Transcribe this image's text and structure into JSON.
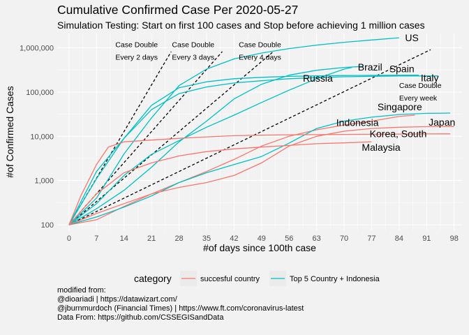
{
  "title": "Cumulative Confirmed Case Per 2020-05-27",
  "subtitle": "Simulation Testing: Start on first 100 cases and Stop before achieving 1 million cases",
  "caption": [
    "modified from:",
    "@dioariadi | https://datawizart.com/",
    "@jburnmurdoch (Financial Times) | https://www.ft.com/coronavirus-latest",
    "Data From: https://github.com/CSSEGISandData"
  ],
  "colors": {
    "background": "#f2f2f2",
    "grid": "#ffffff",
    "succesful": "#f8766d",
    "top5": "#00bfc4",
    "reference": "#000000"
  },
  "chart_data": {
    "type": "line",
    "xlabel": "#of days since 100th case",
    "ylabel": "#of Confirmed Cases",
    "x_ticks": [
      0,
      7,
      14,
      21,
      28,
      35,
      42,
      49,
      56,
      63,
      70,
      77,
      84,
      91,
      98
    ],
    "y_ticks": [
      {
        "value": 100,
        "label": "100"
      },
      {
        "value": 1000,
        "label": "1,000"
      },
      {
        "value": 10000,
        "label": "10,000"
      },
      {
        "value": 100000,
        "label": "100,000"
      },
      {
        "value": 1000000,
        "label": "1,000,000"
      }
    ],
    "xlim": [
      -3,
      100
    ],
    "ylim": [
      75,
      2100000
    ],
    "y_scale": "log",
    "grid": true,
    "legend": {
      "title": "category",
      "position": "bottom",
      "entries": [
        {
          "label": "succesful country",
          "series_category": "succesful"
        },
        {
          "label": "Top 5 Country + Indonesia",
          "series_category": "top5"
        }
      ]
    },
    "reference_lines": [
      {
        "label": "Case Double\nEvery 2 days",
        "doubling_days": 2,
        "x_end": 26,
        "label_x": 11.8,
        "label_y": 1030000
      },
      {
        "label": "Case Double\nEvery 3 days",
        "doubling_days": 3,
        "x_end": 39,
        "label_x": 26.2,
        "label_y": 1030000
      },
      {
        "label": "Case Double\nEvery 4 days",
        "doubling_days": 4,
        "x_end": 52,
        "label_x": 43.2,
        "label_y": 1030000
      },
      {
        "label": "Case Double\nEvery week",
        "doubling_days": 7,
        "x_end": 92,
        "label_x": 84,
        "label_y": 124000
      }
    ],
    "series": [
      {
        "name": "US",
        "category": "top5",
        "points": [
          [
            0,
            100
          ],
          [
            7,
            400
          ],
          [
            14,
            4000
          ],
          [
            21,
            26000
          ],
          [
            28,
            140000
          ],
          [
            35,
            330000
          ],
          [
            42,
            560000
          ],
          [
            49,
            760000
          ],
          [
            56,
            960000
          ],
          [
            63,
            1150000
          ],
          [
            70,
            1330000
          ],
          [
            77,
            1500000
          ],
          [
            84,
            1680000
          ]
        ],
        "label_at": [
          85.5,
          1680000
        ]
      },
      {
        "name": "Brazil",
        "category": "top5",
        "points": [
          [
            0,
            100
          ],
          [
            7,
            300
          ],
          [
            14,
            1300
          ],
          [
            21,
            3900
          ],
          [
            28,
            8000
          ],
          [
            35,
            16000
          ],
          [
            42,
            30000
          ],
          [
            49,
            58000
          ],
          [
            56,
            110000
          ],
          [
            63,
            200000
          ],
          [
            70,
            330000
          ],
          [
            72,
            360000
          ]
        ],
        "label_at": [
          73.5,
          370000
        ]
      },
      {
        "name": "Russia",
        "category": "top5",
        "points": [
          [
            0,
            100
          ],
          [
            7,
            230
          ],
          [
            14,
            600
          ],
          [
            21,
            2000
          ],
          [
            28,
            7500
          ],
          [
            35,
            22000
          ],
          [
            42,
            70000
          ],
          [
            49,
            150000
          ],
          [
            56,
            240000
          ],
          [
            63,
            310000
          ],
          [
            70,
            360000
          ],
          [
            75,
            380000
          ]
        ],
        "label_at": [
          59.5,
          205000
        ]
      },
      {
        "name": "Spain",
        "category": "top5",
        "points": [
          [
            0,
            100
          ],
          [
            7,
            1100
          ],
          [
            14,
            9000
          ],
          [
            21,
            50000
          ],
          [
            28,
            125000
          ],
          [
            35,
            170000
          ],
          [
            42,
            200000
          ],
          [
            49,
            215000
          ],
          [
            56,
            226000
          ],
          [
            63,
            232000
          ],
          [
            70,
            236000
          ],
          [
            77,
            238000
          ],
          [
            84,
            239000
          ],
          [
            89,
            240000
          ]
        ],
        "label_at": [
          81.5,
          335000
        ]
      },
      {
        "name": "Italy",
        "category": "top5",
        "points": [
          [
            0,
            100
          ],
          [
            7,
            1600
          ],
          [
            14,
            9000
          ],
          [
            21,
            40000
          ],
          [
            28,
            92000
          ],
          [
            35,
            130000
          ],
          [
            42,
            160000
          ],
          [
            49,
            180000
          ],
          [
            56,
            200000
          ],
          [
            63,
            212000
          ],
          [
            70,
            221000
          ],
          [
            77,
            227000
          ],
          [
            84,
            230000
          ],
          [
            94,
            231000
          ]
        ],
        "label_at": [
          89.5,
          211000
        ]
      },
      {
        "name": "Indonesia",
        "category": "succesful",
        "points": [
          [
            0,
            100
          ],
          [
            7,
            130
          ],
          [
            14,
            260
          ],
          [
            21,
            500
          ],
          [
            28,
            900
          ],
          [
            35,
            1600
          ],
          [
            42,
            3000
          ],
          [
            49,
            6000
          ],
          [
            56,
            10000
          ],
          [
            63,
            14000
          ],
          [
            70,
            18000
          ],
          [
            77,
            22000
          ],
          [
            84,
            28000
          ],
          [
            88,
            30000
          ]
        ],
        "label_at": [
          68,
          20500
        ]
      },
      {
        "name": "Singapore",
        "category": "top5",
        "points": [
          [
            0,
            100
          ],
          [
            7,
            150
          ],
          [
            14,
            250
          ],
          [
            21,
            450
          ],
          [
            28,
            900
          ],
          [
            35,
            1500
          ],
          [
            42,
            2300
          ],
          [
            49,
            3500
          ],
          [
            56,
            7000
          ],
          [
            63,
            15000
          ],
          [
            70,
            22000
          ],
          [
            77,
            27000
          ],
          [
            84,
            31000
          ],
          [
            91,
            33000
          ],
          [
            97,
            33500
          ]
        ],
        "label_at": [
          78.5,
          46000
        ]
      },
      {
        "name": "Japan",
        "category": "succesful",
        "points": [
          [
            0,
            100
          ],
          [
            7,
            180
          ],
          [
            14,
            300
          ],
          [
            21,
            500
          ],
          [
            28,
            700
          ],
          [
            35,
            900
          ],
          [
            42,
            1300
          ],
          [
            49,
            2500
          ],
          [
            56,
            6000
          ],
          [
            63,
            10000
          ],
          [
            70,
            13000
          ],
          [
            77,
            15000
          ],
          [
            84,
            16000
          ],
          [
            91,
            16500
          ],
          [
            98,
            16600
          ]
        ],
        "label_at": [
          91.5,
          21000
        ]
      },
      {
        "name": "Korea, South",
        "category": "succesful",
        "points": [
          [
            0,
            100
          ],
          [
            3,
            450
          ],
          [
            7,
            2300
          ],
          [
            10,
            5700
          ],
          [
            14,
            7500
          ],
          [
            21,
            8200
          ],
          [
            28,
            9000
          ],
          [
            35,
            9700
          ],
          [
            42,
            10300
          ],
          [
            49,
            10600
          ],
          [
            56,
            10800
          ],
          [
            63,
            10900
          ],
          [
            70,
            11000
          ],
          [
            77,
            11100
          ],
          [
            84,
            11200
          ],
          [
            91,
            11300
          ],
          [
            97,
            11350
          ]
        ],
        "label_at": [
          76.5,
          11500
        ]
      },
      {
        "name": "Malaysia",
        "category": "succesful",
        "points": [
          [
            0,
            100
          ],
          [
            7,
            500
          ],
          [
            14,
            1500
          ],
          [
            21,
            2500
          ],
          [
            28,
            3600
          ],
          [
            35,
            4500
          ],
          [
            42,
            5200
          ],
          [
            49,
            5700
          ],
          [
            56,
            6200
          ],
          [
            63,
            6800
          ],
          [
            70,
            7100
          ],
          [
            77,
            7500
          ]
        ],
        "label_at": [
          74.5,
          5600
        ]
      }
    ]
  }
}
